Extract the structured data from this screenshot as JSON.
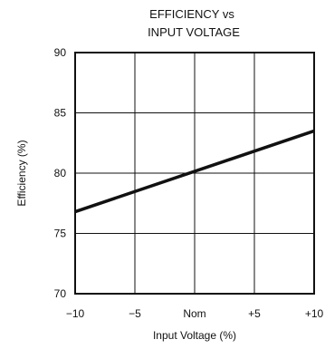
{
  "chart_data": {
    "type": "line",
    "title_lines": [
      "EFFICIENCY vs",
      "INPUT VOLTAGE"
    ],
    "xlabel": "Input Voltage (%)",
    "ylabel": "Efficiency (%)",
    "x_ticks": [
      "−10",
      "−5",
      "Nom",
      "+5",
      "+10"
    ],
    "x_tick_values": [
      -10,
      -5,
      0,
      5,
      10
    ],
    "y_ticks": [
      "70",
      "75",
      "80",
      "85",
      "90"
    ],
    "y_tick_values": [
      70,
      75,
      80,
      85,
      90
    ],
    "xlim": [
      -10,
      10
    ],
    "ylim": [
      70,
      90
    ],
    "grid": true,
    "series": [
      {
        "x": [
          -10,
          10
        ],
        "y": [
          76.8,
          83.5
        ],
        "color": "#111111"
      }
    ]
  }
}
